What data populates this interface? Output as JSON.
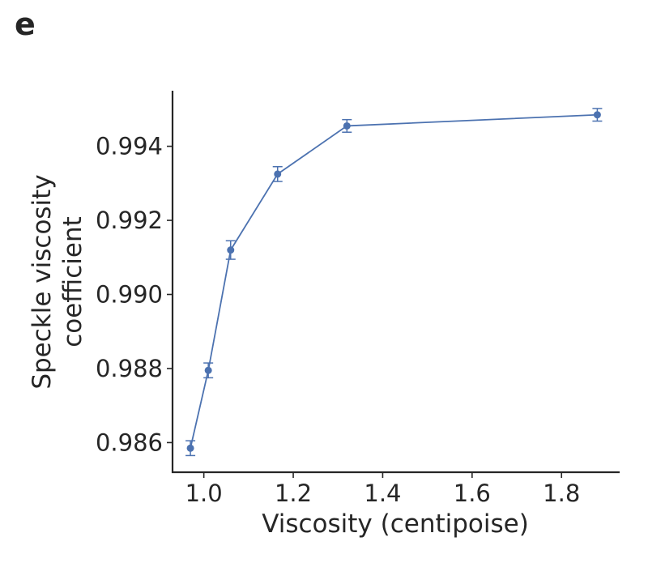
{
  "panel_label": "e",
  "chart_data": {
    "type": "line",
    "title": "",
    "xlabel": "Viscosity (centipoise)",
    "ylabel_lines": [
      "Speckle viscosity",
      "coefficient"
    ],
    "xlim": [
      0.93,
      1.93
    ],
    "ylim": [
      0.9852,
      0.9955
    ],
    "x_ticks": [
      1.0,
      1.2,
      1.4,
      1.6,
      1.8
    ],
    "x_tick_labels": [
      "1.0",
      "1.2",
      "1.4",
      "1.6",
      "1.8"
    ],
    "y_ticks": [
      0.986,
      0.988,
      0.99,
      0.992,
      0.994
    ],
    "y_tick_labels": [
      "0.986",
      "0.988",
      "0.990",
      "0.992",
      "0.994"
    ],
    "grid": false,
    "color": "#4c72b0",
    "series": [
      {
        "x": [
          0.97,
          1.01,
          1.06,
          1.165,
          1.32,
          1.88
        ],
        "y": [
          0.98585,
          0.98795,
          0.9912,
          0.99325,
          0.99455,
          0.99485
        ],
        "err": [
          0.0002,
          0.0002,
          0.00025,
          0.0002,
          0.00017,
          0.00017
        ]
      }
    ]
  }
}
